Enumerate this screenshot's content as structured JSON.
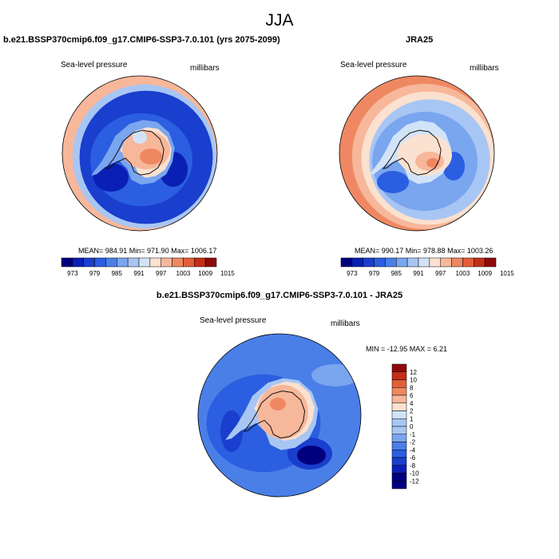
{
  "title": "JJA",
  "colors": {
    "land_outline": "#111111",
    "scale_12": [
      "#00007f",
      "#0a1fb4",
      "#1a3ecd",
      "#2b5ee0",
      "#4a7fe8",
      "#7aa5ef",
      "#a8c6f4",
      "#d2e3f8",
      "#fbe1cf",
      "#f7b79a",
      "#ef8862",
      "#e35d38",
      "#c52d18",
      "#8e0a0a"
    ]
  },
  "panels": [
    {
      "id": "model",
      "title": "b.e21.BSSP370cmip6.f09_g17.CMIP6-SSP3-7.0.101 (yrs 2075-2099)",
      "left_label": "Sea-level pressure",
      "right_label": "millibars",
      "stats": {
        "mean": "984.91",
        "min": "971.90",
        "max": "1006.17"
      },
      "stats_text": "MEAN= 984.91   Min= 971.90   Max= 1006.17",
      "colorbar_labels": [
        "973",
        "979",
        "985",
        "991",
        "997",
        "1003",
        "1009",
        "1015"
      ]
    },
    {
      "id": "obs",
      "title": "JRA25",
      "left_label": "Sea-level pressure",
      "right_label": "millibars",
      "stats": {
        "mean": "990.17",
        "min": "978.88",
        "max": "1003.26"
      },
      "stats_text": "MEAN= 990.17   Min= 978.88   Max= 1003.26",
      "colorbar_labels": [
        "973",
        "979",
        "985",
        "991",
        "997",
        "1003",
        "1009",
        "1015"
      ]
    },
    {
      "id": "diff",
      "title": "b.e21.BSSP370cmip6.f09_g17.CMIP6-SSP3-7.0.101 - JRA25",
      "left_label": "Sea-level pressure",
      "right_label": "millibars",
      "stats": {
        "min": "-12.95",
        "max": "6.21"
      },
      "stats_text": "MIN = -12.95 MAX =   6.21",
      "colorbar_labels": [
        "12",
        "10",
        "8",
        "6",
        "4",
        "2",
        "1",
        "0",
        "-1",
        "-2",
        "-4",
        "-6",
        "-8",
        "-10",
        "-12"
      ]
    }
  ]
}
